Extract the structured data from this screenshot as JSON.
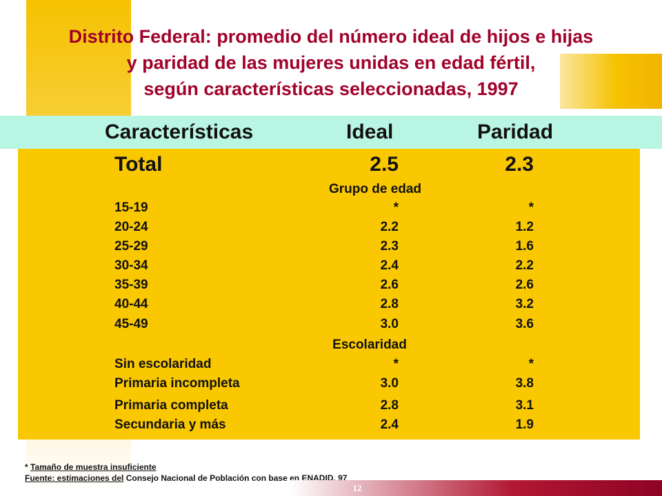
{
  "title": {
    "line1": "Distrito Federal: promedio del número ideal de hijos e hijas",
    "line2": "y paridad de las mujeres unidas en edad fértil,",
    "line3": "según características seleccionadas, 1997"
  },
  "table": {
    "headers": [
      "Características",
      "Ideal",
      "Paridad"
    ],
    "total": {
      "label": "Total",
      "ideal": "2.5",
      "paridad": "2.3"
    },
    "sections": [
      {
        "heading": "Grupo de edad",
        "rows": [
          {
            "label": "15-19",
            "ideal": "*",
            "paridad": "*"
          },
          {
            "label": "20-24",
            "ideal": "2.2",
            "paridad": "1.2"
          },
          {
            "label": "25-29",
            "ideal": "2.3",
            "paridad": "1.6"
          },
          {
            "label": "30-34",
            "ideal": "2.4",
            "paridad": "2.2"
          },
          {
            "label": "35-39",
            "ideal": "2.6",
            "paridad": "2.6"
          },
          {
            "label": "40-44",
            "ideal": "2.8",
            "paridad": "3.2"
          },
          {
            "label": "45-49",
            "ideal": "3.0",
            "paridad": "3.6"
          }
        ]
      },
      {
        "heading": "Escolaridad",
        "rows": [
          {
            "label": "Sin escolaridad",
            "ideal": "*",
            "paridad": "*"
          },
          {
            "label": "Primaria incompleta",
            "ideal": "3.0",
            "paridad": "3.8"
          },
          {
            "label": "Primaria completa",
            "ideal": "2.8",
            "paridad": "3.1"
          },
          {
            "label": "Secundaria y más",
            "ideal": "2.4",
            "paridad": "1.9"
          }
        ]
      }
    ]
  },
  "footnotes": {
    "note_star": "*",
    "note_text": "Tamaño de muestra insuficiente",
    "source_label": "Fuente: estimaciones del",
    "source_text": " Consejo Nacional de Población con base en ",
    "source_end": "ENADID, 97"
  },
  "page_number": "12",
  "colors": {
    "title": "#a1022a",
    "header_band": "#b9f5e3",
    "table_bg": "#f9c800",
    "bottom_bar": "#8f0224"
  }
}
